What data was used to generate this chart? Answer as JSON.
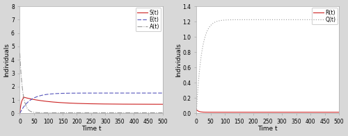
{
  "t_max": 500,
  "t_points": 2000,
  "left_ylim": [
    0,
    8
  ],
  "left_yticks": [
    0,
    1,
    2,
    3,
    4,
    5,
    6,
    7,
    8
  ],
  "left_xlabel": "Time t",
  "left_ylabel": "Individuals",
  "left_legend": [
    "S(t)",
    "E(t)",
    "A(t)"
  ],
  "S_color": "#cc2222",
  "S_linestyle": "solid",
  "S_eq": 0.68,
  "S_peak": 1.22,
  "S_peak_tau": 12,
  "S_decay_tau": 90,
  "E_color": "#5555bb",
  "E_linestyle": "dashed",
  "E_eq": 1.52,
  "E_rise_tau": 35,
  "A_color": "#999999",
  "A_linestyle": "dashdot",
  "A_init": 4.5,
  "A_eq": 0.05,
  "A_decay_tau": 10,
  "right_ylim": [
    0,
    1.4
  ],
  "right_yticks": [
    0,
    0.2,
    0.4,
    0.6,
    0.8,
    1.0,
    1.2,
    1.4
  ],
  "right_xlabel": "Time t",
  "right_ylabel": "Individuals",
  "right_legend": [
    "R(t)",
    "Q(t)"
  ],
  "R_color": "#cc2222",
  "R_linestyle": "solid",
  "R_init": 0.05,
  "R_eq": 0.015,
  "R_decay_tau": 8,
  "Q_color": "#999999",
  "Q_linestyle": "dotted",
  "Q_eq": 1.225,
  "Q_rise_tau": 18,
  "fig_bg": "#d8d8d8",
  "axes_bg": "#ffffff",
  "legend_fontsize": 5.5,
  "axis_label_fontsize": 6.5,
  "tick_fontsize": 5.5,
  "linewidth": 0.8,
  "spine_color": "#aaaaaa"
}
